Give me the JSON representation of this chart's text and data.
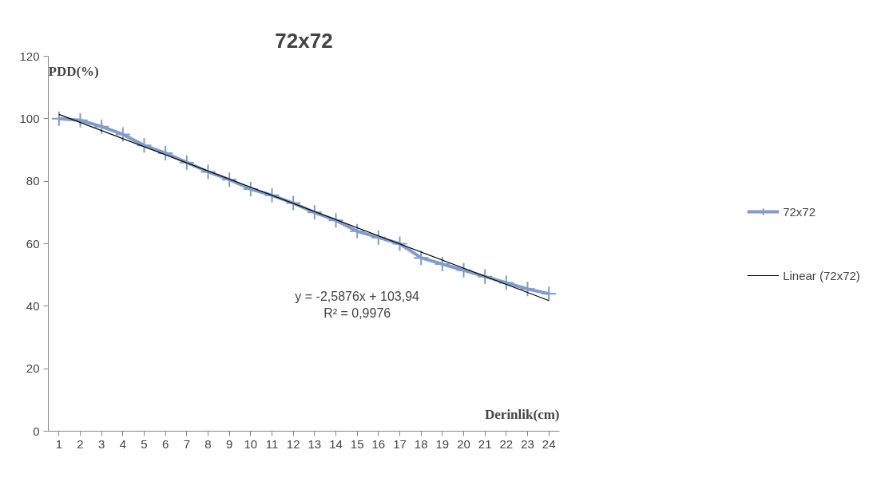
{
  "chart_data": {
    "type": "line",
    "title": "72x72",
    "xlabel": "Derinlik(cm)",
    "ylabel": "PDD(%)",
    "x": [
      1,
      2,
      3,
      4,
      5,
      6,
      7,
      8,
      9,
      10,
      11,
      12,
      13,
      14,
      15,
      16,
      17,
      18,
      19,
      20,
      21,
      22,
      23,
      24
    ],
    "xlim": [
      0.5,
      24.5
    ],
    "xticks": [
      1,
      2,
      3,
      4,
      5,
      6,
      7,
      8,
      9,
      10,
      11,
      12,
      13,
      14,
      15,
      16,
      17,
      18,
      19,
      20,
      21,
      22,
      23,
      24
    ],
    "ylim": [
      0,
      120
    ],
    "yticks": [
      0,
      20,
      40,
      60,
      80,
      100,
      120
    ],
    "series": [
      {
        "name": "72x72",
        "color": "#7f9ccc",
        "marker": "cross",
        "values": [
          100,
          99.5,
          97.5,
          95,
          91.5,
          89,
          86,
          83,
          80.5,
          77.5,
          75.5,
          73,
          70,
          67.5,
          64,
          62,
          60,
          55.5,
          53.5,
          51.5,
          49.5,
          47.5,
          45.5,
          44
        ]
      },
      {
        "name": "Linear (72x72)",
        "type": "line",
        "color": "#000000",
        "marker": "none",
        "x": [
          1,
          24
        ],
        "values": [
          101.4,
          41.8
        ]
      }
    ],
    "annotations": [
      "y = -2,5876x + 103,94",
      "R² = 0,9976"
    ],
    "grid": false,
    "legend": "right"
  }
}
